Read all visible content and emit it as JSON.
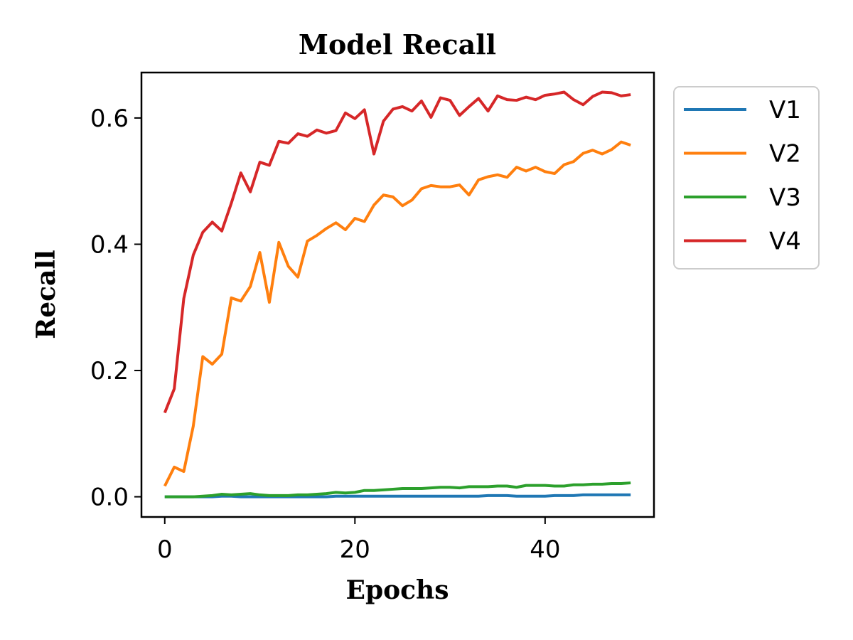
{
  "chart_data": {
    "type": "line",
    "title": "Model Recall",
    "xlabel": "Epochs",
    "ylabel": "Recall",
    "xlim": [
      -2.45,
      51.45
    ],
    "ylim": [
      -0.032,
      0.672
    ],
    "xticks": [
      0,
      20,
      40
    ],
    "xtick_labels": [
      "0",
      "20",
      "40"
    ],
    "yticks": [
      0.0,
      0.2,
      0.4,
      0.6
    ],
    "ytick_labels": [
      "0.0",
      "0.2",
      "0.4",
      "0.6"
    ],
    "grid": false,
    "legend_position": "outside-top-right",
    "x": [
      0,
      1,
      2,
      3,
      4,
      5,
      6,
      7,
      8,
      9,
      10,
      11,
      12,
      13,
      14,
      15,
      16,
      17,
      18,
      19,
      20,
      21,
      22,
      23,
      24,
      25,
      26,
      27,
      28,
      29,
      30,
      31,
      32,
      33,
      34,
      35,
      36,
      37,
      38,
      39,
      40,
      41,
      42,
      43,
      44,
      45,
      46,
      47,
      48,
      49
    ],
    "series": [
      {
        "name": "V1",
        "color": "#1f77b4",
        "values": [
          0.0,
          0.0,
          0.0,
          0.0,
          0.0,
          0.0,
          0.001,
          0.001,
          0.0,
          0.0,
          0.0,
          0.0,
          0.0,
          0.0,
          0.0,
          0.0,
          0.0,
          0.0,
          0.001,
          0.001,
          0.001,
          0.001,
          0.001,
          0.001,
          0.001,
          0.001,
          0.001,
          0.001,
          0.001,
          0.001,
          0.001,
          0.001,
          0.001,
          0.001,
          0.002,
          0.002,
          0.002,
          0.001,
          0.001,
          0.001,
          0.001,
          0.002,
          0.002,
          0.002,
          0.003,
          0.003,
          0.003,
          0.003,
          0.003,
          0.003
        ]
      },
      {
        "name": "V2",
        "color": "#ff7f0e",
        "values": [
          0.017,
          0.047,
          0.04,
          0.112,
          0.222,
          0.21,
          0.226,
          0.315,
          0.31,
          0.333,
          0.387,
          0.308,
          0.403,
          0.365,
          0.348,
          0.405,
          0.414,
          0.425,
          0.434,
          0.423,
          0.441,
          0.436,
          0.462,
          0.478,
          0.475,
          0.461,
          0.47,
          0.488,
          0.493,
          0.491,
          0.491,
          0.494,
          0.478,
          0.502,
          0.507,
          0.51,
          0.506,
          0.522,
          0.516,
          0.522,
          0.515,
          0.512,
          0.526,
          0.531,
          0.544,
          0.549,
          0.543,
          0.55,
          0.562,
          0.557
        ]
      },
      {
        "name": "V3",
        "color": "#2ca02c",
        "values": [
          0.0,
          0.0,
          0.0,
          0.0,
          0.001,
          0.002,
          0.004,
          0.003,
          0.004,
          0.005,
          0.003,
          0.002,
          0.002,
          0.002,
          0.003,
          0.003,
          0.004,
          0.005,
          0.007,
          0.006,
          0.007,
          0.01,
          0.01,
          0.011,
          0.012,
          0.013,
          0.013,
          0.013,
          0.014,
          0.015,
          0.015,
          0.014,
          0.016,
          0.016,
          0.016,
          0.017,
          0.017,
          0.015,
          0.018,
          0.018,
          0.018,
          0.017,
          0.017,
          0.019,
          0.019,
          0.02,
          0.02,
          0.021,
          0.021,
          0.022
        ]
      },
      {
        "name": "V4",
        "color": "#d62728",
        "values": [
          0.133,
          0.171,
          0.314,
          0.383,
          0.419,
          0.435,
          0.421,
          0.465,
          0.513,
          0.483,
          0.53,
          0.525,
          0.563,
          0.56,
          0.575,
          0.571,
          0.581,
          0.576,
          0.58,
          0.608,
          0.599,
          0.613,
          0.543,
          0.595,
          0.614,
          0.618,
          0.611,
          0.627,
          0.601,
          0.632,
          0.628,
          0.604,
          0.618,
          0.631,
          0.611,
          0.635,
          0.629,
          0.628,
          0.633,
          0.629,
          0.636,
          0.638,
          0.641,
          0.629,
          0.621,
          0.634,
          0.641,
          0.64,
          0.635,
          0.637
        ]
      }
    ]
  }
}
